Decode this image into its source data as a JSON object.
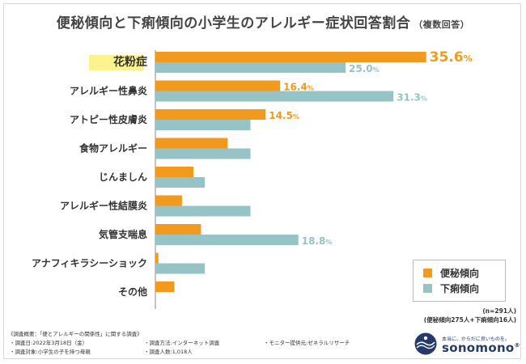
{
  "title": "便秘傾向と下痢傾向の小学生のアレルギー症状回答割合",
  "title_note": "（複数回答）",
  "chart_data": {
    "type": "bar",
    "orientation": "horizontal",
    "categories": [
      "花粉症",
      "アレルギー性鼻炎",
      "アトピー性皮膚炎",
      "食物アレルギー",
      "じんましん",
      "アレルギー性結膜炎",
      "気管支喘息",
      "アナフィキラシーショック",
      "その他"
    ],
    "highlighted_category": "花粉症",
    "series": [
      {
        "name": "便秘傾向",
        "color": "#f29a1d",
        "values": [
          35.6,
          16.4,
          14.5,
          9.5,
          5.0,
          3.5,
          6.0,
          0.4,
          2.5
        ],
        "labels": [
          "35.6%",
          "16.4%",
          "14.5%",
          "",
          "",
          "",
          "",
          "",
          ""
        ]
      },
      {
        "name": "下痢傾向",
        "color": "#96c3c5",
        "values": [
          25.0,
          31.3,
          12.5,
          12.5,
          6.5,
          12.5,
          18.8,
          6.5,
          0
        ],
        "labels": [
          "25.0%",
          "31.3%",
          "",
          "",
          "",
          "",
          "18.8%",
          "",
          ""
        ]
      }
    ],
    "xlim": [
      0,
      40
    ]
  },
  "legend": {
    "items": [
      {
        "label": "便秘傾向",
        "color": "#f29a1d"
      },
      {
        "label": "下痢傾向",
        "color": "#96c3c5"
      }
    ]
  },
  "sample": {
    "line1": "(n=291人)",
    "line2": "(便秘傾向275人+下痢傾向16人)"
  },
  "survey": {
    "heading": "《調査概要：「便とアレルギーの関係性」に関する調査》",
    "date": "・調査日:2022年3月18日（金）",
    "method": "・調査方法:インターネット調査",
    "provider": "・モニター提供元:ゼネラルリサーチ",
    "target": "・調査対象:小学生の子を持つ母親",
    "count": "・調査人数:1,018人"
  },
  "brand": {
    "tagline": "本当に、からだに良いものを。",
    "name": "sonomono",
    "mark": "®",
    "color": "#233a6b"
  }
}
